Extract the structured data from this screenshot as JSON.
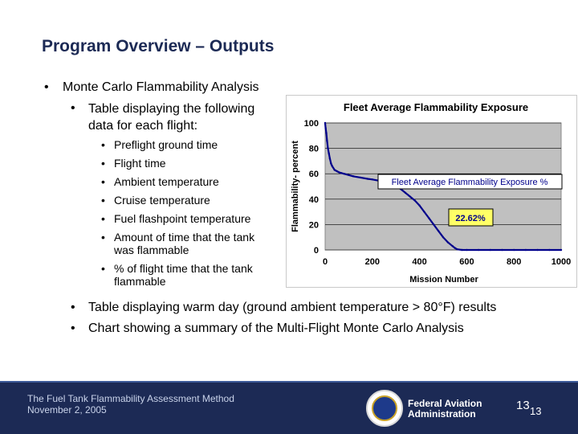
{
  "slide": {
    "title": "Program Overview – Outputs",
    "bullet_char": "•",
    "level1": "Monte Carlo Flammability Analysis",
    "level2": "Table displaying the following data for each flight:",
    "level3": [
      "Preflight ground time",
      "Flight time",
      "Ambient temperature",
      "Cruise temperature",
      "Fuel flashpoint temperature",
      "Amount of time that the tank was flammable",
      "% of flight time that the tank flammable"
    ],
    "bottom": [
      "Table displaying warm day (ground ambient temperature > 80°F) results",
      "Chart showing a summary of the Multi-Flight Monte Carlo  Analysis"
    ]
  },
  "footer": {
    "line1": "The Fuel Tank Flammability Assessment Method",
    "line2": "November 2, 2005",
    "faa_line1": "Federal Aviation",
    "faa_line2": "Administration",
    "page_a": "13",
    "page_b": "13"
  },
  "chart_data": {
    "type": "line",
    "title": "Fleet Average Flammability Exposure",
    "xlabel": "Mission Number",
    "ylabel": "Flammability- percent",
    "xlim": [
      0,
      1000
    ],
    "ylim": [
      0,
      100
    ],
    "xticks": [
      0,
      200,
      400,
      600,
      800,
      1000
    ],
    "yticks": [
      0,
      20,
      40,
      60,
      80,
      100
    ],
    "plot_background": "#c0c0c0",
    "line_color": "#00008b",
    "series": [
      {
        "x": [
          0,
          2,
          5,
          8,
          12,
          16,
          20,
          25,
          30,
          40,
          50,
          60,
          70,
          80,
          100,
          120,
          150,
          180,
          200,
          230,
          260,
          280,
          300,
          320,
          340,
          360,
          380,
          400,
          420,
          440,
          460,
          480,
          500,
          520,
          540,
          550,
          560,
          580,
          600,
          650,
          700,
          750,
          800,
          850,
          900,
          950,
          1000
        ],
        "y": [
          100,
          96,
          92,
          86,
          80,
          76,
          72,
          68,
          66,
          63,
          62,
          61,
          60.5,
          60,
          59,
          58,
          57,
          56,
          55.5,
          54.5,
          53,
          52,
          50,
          48,
          45,
          42,
          39,
          35,
          30,
          25,
          20,
          15,
          10,
          6,
          3,
          1.5,
          0.5,
          0,
          0,
          0,
          0,
          0,
          0,
          0,
          0,
          0,
          0
        ]
      }
    ],
    "annotations": [
      {
        "text": "Fleet Average Flammability Exposure %"
      },
      {
        "text": "22.62%"
      }
    ]
  }
}
